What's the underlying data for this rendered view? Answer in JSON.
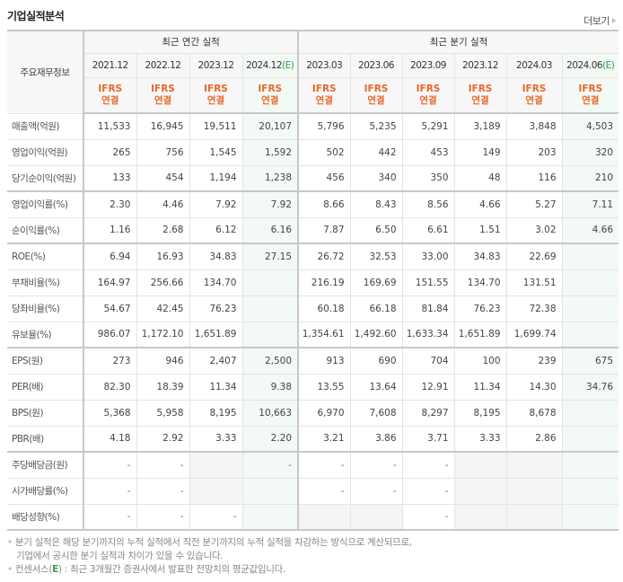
{
  "header": {
    "title": "기업실적분석",
    "more_label": "더보기"
  },
  "table": {
    "row_header_label": "주요재무정보",
    "groups": {
      "annual": "최근 연간 실적",
      "quarterly": "최근 분기 실적"
    },
    "periods": [
      {
        "label": "2021.12",
        "estimate": false
      },
      {
        "label": "2022.12",
        "estimate": false
      },
      {
        "label": "2023.12",
        "estimate": false
      },
      {
        "label": "2024.12",
        "estimate": true
      },
      {
        "label": "2023.03",
        "estimate": false
      },
      {
        "label": "2023.06",
        "estimate": false
      },
      {
        "label": "2023.09",
        "estimate": false
      },
      {
        "label": "2023.12",
        "estimate": false
      },
      {
        "label": "2024.03",
        "estimate": false
      },
      {
        "label": "2024.06",
        "estimate": true
      }
    ],
    "estimate_mark": "(E)",
    "basis_line1": "IFRS",
    "basis_line2": "연결",
    "rows": [
      {
        "label": "매출액(억원)",
        "values": [
          "11,533",
          "16,945",
          "19,511",
          "20,107",
          "5,796",
          "5,235",
          "5,291",
          "3,189",
          "3,848",
          "4,503"
        ]
      },
      {
        "label": "영업이익(억원)",
        "values": [
          "265",
          "756",
          "1,545",
          "1,592",
          "502",
          "442",
          "453",
          "149",
          "203",
          "320"
        ]
      },
      {
        "label": "당기순이익(억원)",
        "values": [
          "133",
          "454",
          "1,194",
          "1,238",
          "456",
          "340",
          "350",
          "48",
          "116",
          "210"
        ]
      },
      {
        "label": "영업이익률(%)",
        "values": [
          "2.30",
          "4.46",
          "7.92",
          "7.92",
          "8.66",
          "8.43",
          "8.56",
          "4.66",
          "5.27",
          "7.11"
        ]
      },
      {
        "label": "순이익률(%)",
        "values": [
          "1.16",
          "2.68",
          "6.12",
          "6.16",
          "7.87",
          "6.50",
          "6.61",
          "1.51",
          "3.02",
          "4.66"
        ]
      },
      {
        "label": "ROE(%)",
        "values": [
          "6.94",
          "16.93",
          "34.83",
          "27.15",
          "26.72",
          "32.53",
          "33.00",
          "34.83",
          "22.69",
          ""
        ]
      },
      {
        "label": "부채비율(%)",
        "values": [
          "164.97",
          "256.66",
          "134.70",
          "",
          "216.19",
          "169.69",
          "151.55",
          "134.70",
          "131.51",
          ""
        ]
      },
      {
        "label": "당좌비율(%)",
        "values": [
          "54.67",
          "42.45",
          "76.23",
          "",
          "60.18",
          "66.18",
          "81.84",
          "76.23",
          "72.38",
          ""
        ]
      },
      {
        "label": "유보율(%)",
        "values": [
          "986.07",
          "1,172.10",
          "1,651.89",
          "",
          "1,354.61",
          "1,492.60",
          "1,633.34",
          "1,651.89",
          "1,699.74",
          ""
        ]
      },
      {
        "label": "EPS(원)",
        "values": [
          "273",
          "946",
          "2,407",
          "2,500",
          "913",
          "690",
          "704",
          "100",
          "239",
          "675"
        ]
      },
      {
        "label": "PER(배)",
        "values": [
          "82.30",
          "18.39",
          "11.34",
          "9.38",
          "13.55",
          "13.64",
          "12.91",
          "11.34",
          "14.30",
          "34.76"
        ]
      },
      {
        "label": "BPS(원)",
        "values": [
          "5,368",
          "5,958",
          "8,195",
          "10,663",
          "6,970",
          "7,608",
          "8,297",
          "8,195",
          "8,678",
          ""
        ]
      },
      {
        "label": "PBR(배)",
        "values": [
          "4.18",
          "2.92",
          "3.33",
          "2.20",
          "3.21",
          "3.86",
          "3.71",
          "3.33",
          "2.86",
          ""
        ]
      },
      {
        "label": "주당배당금(원)",
        "values": [
          "-",
          "-",
          null,
          "-",
          "-",
          "-",
          "-",
          null,
          null,
          ""
        ]
      },
      {
        "label": "시가배당률(%)",
        "values": [
          "-",
          "-",
          null,
          "",
          "-",
          "-",
          "-",
          null,
          null,
          ""
        ]
      },
      {
        "label": "배당성향(%)",
        "values": [
          "-",
          "-",
          "-",
          "",
          null,
          null,
          "-",
          null,
          null,
          ""
        ]
      }
    ]
  },
  "notes": {
    "line1": "분기 실적은 해당 분기까지의 누적 실적에서 직전 분기까지의 누적 실적을 차감하는 방식으로 계산되므로,",
    "line2": "기업에서 공시한 분기 실적과 차이가 있을 수 있습니다.",
    "line3_prefix": "컨센서스(",
    "line3_e": "E",
    "line3_suffix": ") : 최근 3개월간 증권사에서 발표한 전망치의 평균값입니다."
  },
  "colors": {
    "ifrs": "#e8682a",
    "estimate_mark": "#3a9a4a",
    "estimate_column_bg": "#f3f9f4",
    "empty_cell_bg": "#f5f5f5"
  }
}
